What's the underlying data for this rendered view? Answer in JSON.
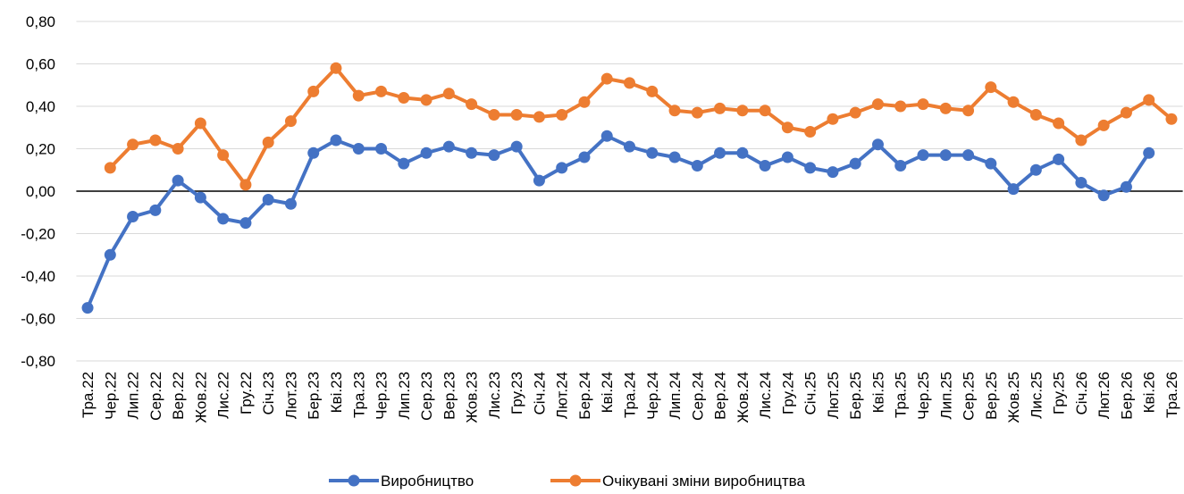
{
  "chart_data": {
    "type": "line",
    "categories": [
      "Тра.22",
      "Чер.22",
      "Лип.22",
      "Сер.22",
      "Вер.22",
      "Жов.22",
      "Лис.22",
      "Гру.22",
      "Січ.23",
      "Лют.23",
      "Бер.23",
      "Кві.23",
      "Тра.23",
      "Чер.23",
      "Лип.23",
      "Сер.23",
      "Вер.23",
      "Жов.23",
      "Лис.23",
      "Гру.23",
      "Січ.24",
      "Лют.24",
      "Бер.24",
      "Кві.24",
      "Тра.24",
      "Чер.24",
      "Лип.24",
      "Сер.24",
      "Вер.24",
      "Жов.24",
      "Лис.24",
      "Гру.24",
      "Січ.25",
      "Лют.25",
      "Бер.25",
      "Кві.25",
      "Тра.25",
      "Чер.25",
      "Лип.25",
      "Сер.25",
      "Вер.25",
      "Жов.25",
      "Лис.25",
      "Гру.25",
      "Січ.26",
      "Лют.26",
      "Бер.26",
      "Кві.26",
      "Тра.26"
    ],
    "series": [
      {
        "name": "Виробництво",
        "color": "#4472c4",
        "values": [
          -0.55,
          -0.3,
          -0.12,
          -0.09,
          0.05,
          -0.03,
          -0.13,
          -0.15,
          -0.04,
          -0.06,
          0.18,
          0.24,
          0.2,
          0.2,
          0.13,
          0.18,
          0.21,
          0.18,
          0.17,
          0.21,
          0.05,
          0.11,
          0.16,
          0.26,
          0.21,
          0.18,
          0.16,
          0.12,
          0.18,
          0.18,
          0.12,
          0.16,
          0.11,
          0.09,
          0.13,
          0.22,
          0.12,
          0.17,
          0.17,
          0.17,
          0.13,
          0.01,
          0.1,
          0.15,
          0.04,
          -0.02,
          0.02,
          0.18,
          null
        ]
      },
      {
        "name": "Очікувані зміни виробництва",
        "color": "#ed7d31",
        "values": [
          null,
          0.11,
          0.22,
          0.24,
          0.2,
          0.32,
          0.17,
          0.03,
          0.23,
          0.33,
          0.47,
          0.58,
          0.45,
          0.47,
          0.44,
          0.43,
          0.46,
          0.41,
          0.36,
          0.36,
          0.35,
          0.36,
          0.42,
          0.53,
          0.51,
          0.47,
          0.38,
          0.37,
          0.39,
          0.38,
          0.38,
          0.3,
          0.28,
          0.34,
          0.37,
          0.41,
          0.4,
          0.41,
          0.39,
          0.38,
          0.49,
          0.42,
          0.36,
          0.32,
          0.24,
          0.31,
          0.37,
          0.43,
          0.34
        ]
      }
    ],
    "ylim": [
      -0.8,
      0.8
    ],
    "yticks": [
      {
        "value": -0.8,
        "label": "-0,80"
      },
      {
        "value": -0.6,
        "label": "-0,60"
      },
      {
        "value": -0.4,
        "label": "-0,40"
      },
      {
        "value": -0.2,
        "label": "-0,20"
      },
      {
        "value": 0,
        "label": "0,00"
      },
      {
        "value": 0.2,
        "label": "0,20"
      },
      {
        "value": 0.4,
        "label": "0,40"
      },
      {
        "value": 0.6,
        "label": "0,60"
      },
      {
        "value": 0.8,
        "label": "0,80"
      }
    ],
    "grid": true,
    "legend": "bottom"
  }
}
